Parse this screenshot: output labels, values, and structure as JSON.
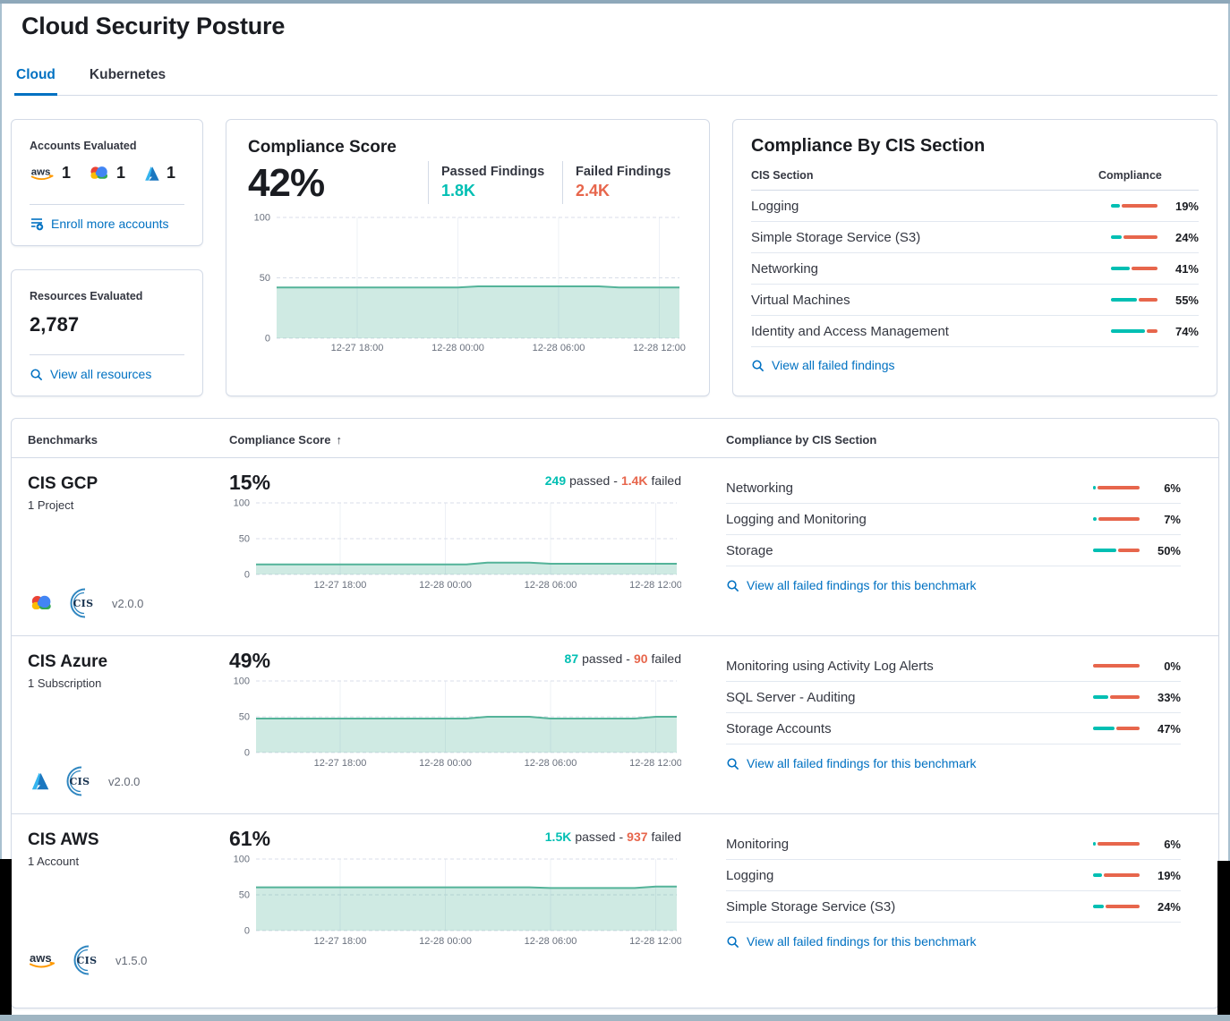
{
  "page": {
    "title": "Cloud Security Posture"
  },
  "tabs": [
    {
      "label": "Cloud"
    },
    {
      "label": "Kubernetes"
    }
  ],
  "colors": {
    "passed_teal": "#00BFB3",
    "failed_red": "#E7664C",
    "link_blue": "#0071C2",
    "trend_line_green": "#54B399",
    "active_tab_blue": "#0071C2"
  },
  "accounts_card": {
    "title": "Accounts Evaluated",
    "providers": [
      {
        "name": "aws",
        "count": "1"
      },
      {
        "name": "gcp",
        "count": "1"
      },
      {
        "name": "azure",
        "count": "1"
      }
    ],
    "link": "Enroll more accounts"
  },
  "resources_card": {
    "title": "Resources Evaluated",
    "value": "2,787",
    "link": "View all resources"
  },
  "score_card": {
    "title": "Compliance Score",
    "score": "42%",
    "passed_label": "Passed Findings",
    "passed_value": "1.8K",
    "failed_label": "Failed Findings",
    "failed_value": "2.4K"
  },
  "cis_card": {
    "title": "Compliance By CIS Section",
    "col_section": "CIS Section",
    "col_compliance": "Compliance",
    "rows": [
      {
        "name": "Logging",
        "pct": 19,
        "label": "19%"
      },
      {
        "name": "Simple Storage Service (S3)",
        "pct": 24,
        "label": "24%"
      },
      {
        "name": "Networking",
        "pct": 41,
        "label": "41%"
      },
      {
        "name": "Virtual Machines",
        "pct": 55,
        "label": "55%"
      },
      {
        "name": "Identity and Access Management",
        "pct": 74,
        "label": "74%"
      }
    ],
    "link": "View all failed findings"
  },
  "benchmarks": {
    "col_benchmarks": "Benchmarks",
    "col_score": "Compliance Score",
    "sort_icon": "↑",
    "col_cis": "Compliance by CIS Section",
    "passed_word": "passed",
    "sep": "-",
    "failed_word": "failed",
    "cis_logo_text": "CIS",
    "rows": [
      {
        "name": "CIS GCP",
        "scope": "1 Project",
        "version": "v2.0.0",
        "score": "15%",
        "passed": "249",
        "failed": "1.4K",
        "sections": [
          {
            "name": "Networking",
            "pct": 6,
            "label": "6%"
          },
          {
            "name": "Logging and Monitoring",
            "pct": 7,
            "label": "7%"
          },
          {
            "name": "Storage",
            "pct": 50,
            "label": "50%"
          }
        ],
        "link": "View all failed findings for this benchmark"
      },
      {
        "name": "CIS Azure",
        "scope": "1 Subscription",
        "version": "v2.0.0",
        "score": "49%",
        "passed": "87",
        "failed": "90",
        "sections": [
          {
            "name": "Monitoring using Activity Log Alerts",
            "pct": 0,
            "label": "0%"
          },
          {
            "name": "SQL Server - Auditing",
            "pct": 33,
            "label": "33%"
          },
          {
            "name": "Storage Accounts",
            "pct": 47,
            "label": "47%"
          }
        ],
        "link": "View all failed findings for this benchmark"
      },
      {
        "name": "CIS AWS",
        "scope": "1 Account",
        "version": "v1.5.0",
        "score": "61%",
        "passed": "1.5K",
        "failed": "937",
        "sections": [
          {
            "name": "Monitoring",
            "pct": 6,
            "label": "6%"
          },
          {
            "name": "Logging",
            "pct": 19,
            "label": "19%"
          },
          {
            "name": "Simple Storage Service (S3)",
            "pct": 24,
            "label": "24%"
          }
        ],
        "link": "View all failed findings for this benchmark"
      }
    ]
  },
  "chart_data": [
    {
      "id": "overall-compliance-trend",
      "type": "area",
      "title": "Compliance Score 42% trend",
      "x_ticks": [
        "12-27 18:00",
        "12-28 00:00",
        "12-28 06:00",
        "12-28 12:00"
      ],
      "ylim": [
        0,
        100
      ],
      "yticks": [
        0,
        50,
        100
      ],
      "grid": true,
      "legend": false,
      "values": [
        42,
        42,
        42,
        42,
        42,
        42,
        42,
        42,
        42,
        42,
        43,
        43,
        43,
        43,
        43,
        43,
        43,
        42,
        42,
        42,
        42
      ]
    },
    {
      "id": "cis-gcp-trend",
      "type": "area",
      "title": "CIS GCP compliance trend 15%",
      "x_ticks": [
        "12-27 18:00",
        "12-28 00:00",
        "12-28 06:00",
        "12-28 12:00"
      ],
      "ylim": [
        0,
        100
      ],
      "yticks": [
        0,
        50,
        100
      ],
      "grid": true,
      "legend": false,
      "values": [
        14,
        14,
        14,
        14,
        14,
        14,
        14,
        14,
        14,
        14,
        14,
        16.5,
        16.5,
        16.5,
        15,
        15,
        15,
        15,
        15,
        15,
        15
      ]
    },
    {
      "id": "cis-azure-trend",
      "type": "area",
      "title": "CIS Azure compliance trend 49%",
      "x_ticks": [
        "12-27 18:00",
        "12-28 00:00",
        "12-28 06:00",
        "12-28 12:00"
      ],
      "ylim": [
        0,
        100
      ],
      "yticks": [
        0,
        50,
        100
      ],
      "grid": true,
      "legend": false,
      "values": [
        47.5,
        47.5,
        47.5,
        47.5,
        47.5,
        47.5,
        47.5,
        47.5,
        47.5,
        47.5,
        47.5,
        50,
        50,
        50,
        47.5,
        47.5,
        47.5,
        47.5,
        47.5,
        50,
        50
      ]
    },
    {
      "id": "cis-aws-trend",
      "type": "area",
      "title": "CIS AWS compliance trend 61%",
      "x_ticks": [
        "12-27 18:00",
        "12-28 00:00",
        "12-28 06:00",
        "12-28 12:00"
      ],
      "ylim": [
        0,
        100
      ],
      "yticks": [
        0,
        50,
        100
      ],
      "grid": true,
      "legend": false,
      "values": [
        60.5,
        60.5,
        60.5,
        60.5,
        60.5,
        60.5,
        60.5,
        60.5,
        60.5,
        60.5,
        60.5,
        60.5,
        60.5,
        60.5,
        59.5,
        59.5,
        59.5,
        59.5,
        59.5,
        61.5,
        61.5
      ]
    }
  ]
}
